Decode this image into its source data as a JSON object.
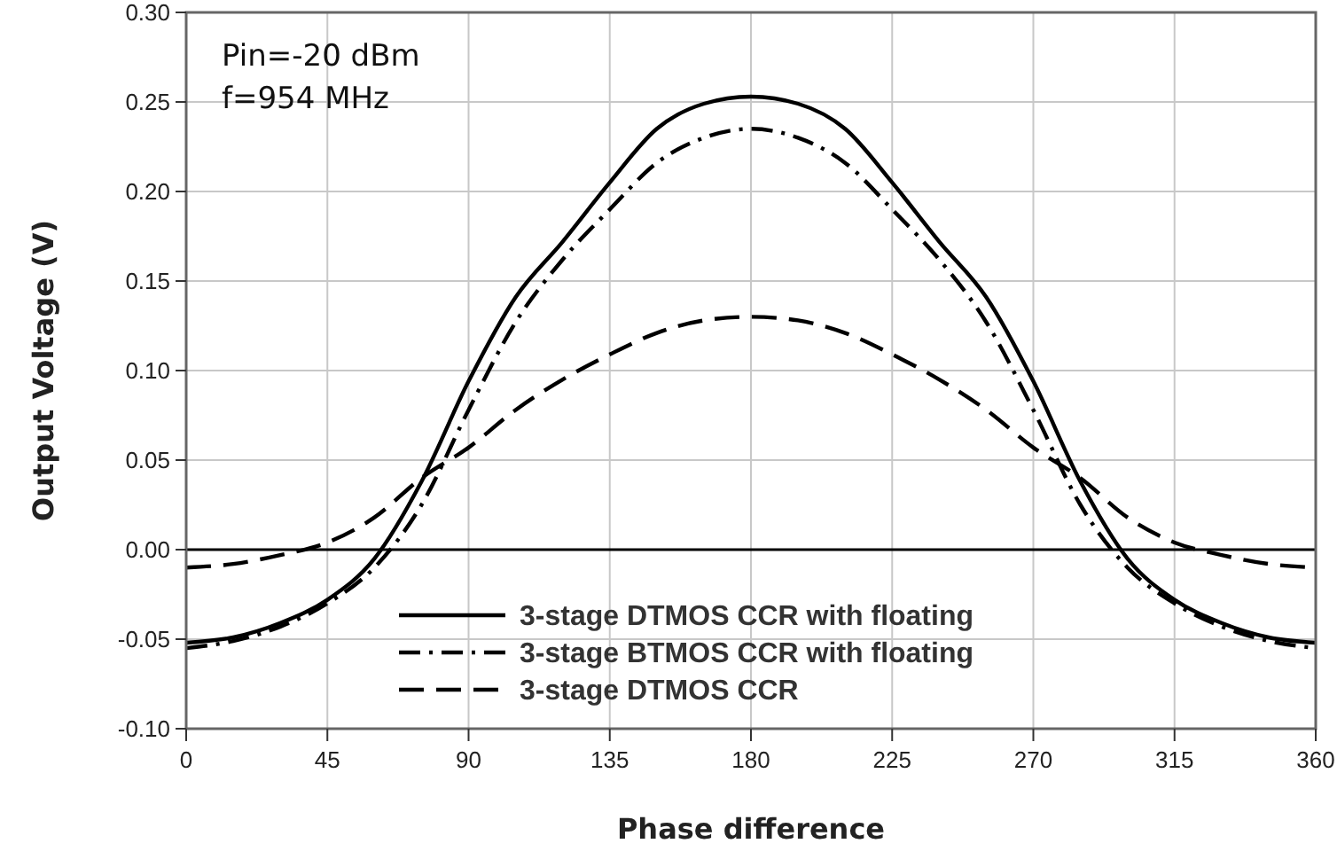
{
  "chart_data": {
    "type": "line",
    "xlabel": "Phase difference",
    "ylabel": "Output Voltage (V)",
    "annotations": [
      "Pin=-20 dBm",
      "f=954 MHz"
    ],
    "x": [
      0,
      15,
      30,
      45,
      60,
      75,
      90,
      105,
      120,
      135,
      150,
      165,
      180,
      195,
      210,
      225,
      240,
      255,
      270,
      285,
      300,
      315,
      330,
      345,
      360
    ],
    "series": [
      {
        "name": "3-stage DTMOS CCR with floating",
        "color": "#000000",
        "line_style": "solid",
        "values": [
          -0.052,
          -0.049,
          -0.041,
          -0.028,
          -0.005,
          0.038,
          0.094,
          0.141,
          0.172,
          0.205,
          0.235,
          0.249,
          0.253,
          0.249,
          0.235,
          0.205,
          0.172,
          0.141,
          0.094,
          0.038,
          -0.005,
          -0.028,
          -0.041,
          -0.049,
          -0.052
        ]
      },
      {
        "name": "3-stage BTMOS CCR with floating",
        "color": "#000000",
        "line_style": "dashdot",
        "values": [
          -0.055,
          -0.051,
          -0.043,
          -0.03,
          -0.01,
          0.025,
          0.078,
          0.127,
          0.162,
          0.19,
          0.216,
          0.23,
          0.235,
          0.23,
          0.216,
          0.19,
          0.162,
          0.127,
          0.078,
          0.025,
          -0.01,
          -0.03,
          -0.043,
          -0.051,
          -0.055
        ]
      },
      {
        "name": "3-stage DTMOS CCR",
        "color": "#000000",
        "line_style": "dashed",
        "values": [
          -0.01,
          -0.008,
          -0.003,
          0.004,
          0.018,
          0.04,
          0.057,
          0.078,
          0.095,
          0.109,
          0.121,
          0.128,
          0.13,
          0.128,
          0.121,
          0.109,
          0.095,
          0.078,
          0.057,
          0.04,
          0.018,
          0.004,
          -0.003,
          -0.008,
          -0.01
        ]
      }
    ],
    "xlim": [
      0,
      360
    ],
    "xticks": [
      0,
      45,
      90,
      135,
      180,
      225,
      270,
      315,
      360
    ],
    "ylim": [
      -0.1,
      0.3
    ],
    "yticks": [
      {
        "value": -0.1,
        "label": "-0.10"
      },
      {
        "value": -0.05,
        "label": "-0.05"
      },
      {
        "value": 0,
        "label": "0.00"
      },
      {
        "value": 0.05,
        "label": "0.05"
      },
      {
        "value": 0.1,
        "label": "0.10"
      },
      {
        "value": 0.15,
        "label": "0.15"
      },
      {
        "value": 0.2,
        "label": "0.20"
      },
      {
        "value": 0.25,
        "label": "0.25"
      },
      {
        "value": 0.3,
        "label": "0.30"
      }
    ],
    "ref_lines": [
      {
        "axis": "y",
        "value": 0,
        "color": "#000000",
        "line_style": "solid"
      }
    ],
    "grid": true,
    "legend": "bottom",
    "marker": "none"
  }
}
